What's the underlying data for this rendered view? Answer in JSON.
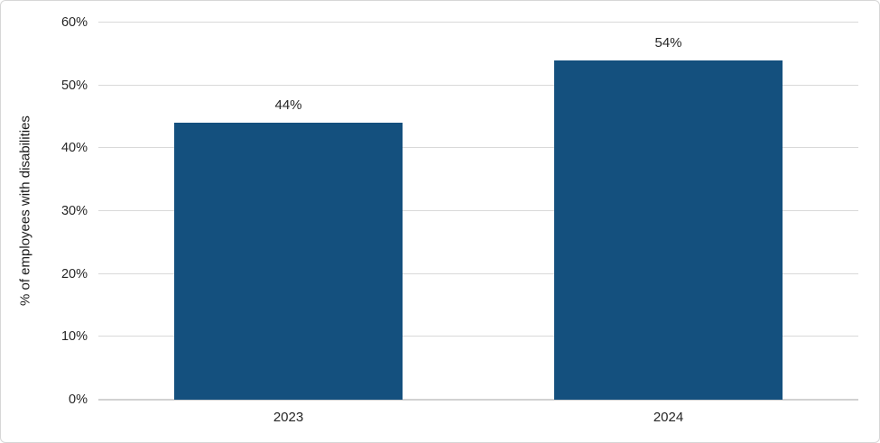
{
  "chart_data": {
    "type": "bar",
    "title": "",
    "xlabel": "",
    "ylabel": "% of employees with disabilities",
    "categories": [
      "2023",
      "2024"
    ],
    "values": [
      44,
      54
    ],
    "data_labels": [
      "44%",
      "54%"
    ],
    "ylim": [
      0,
      60
    ],
    "ytick_step": 10,
    "ytick_labels": [
      "0%",
      "10%",
      "20%",
      "30%",
      "40%",
      "50%",
      "60%"
    ],
    "grid": true,
    "legend_position": "none",
    "colors": {
      "bar": "#14507E",
      "gridline": "#d9d9d9",
      "axis_line": "#d2d2d2",
      "text": "#262626",
      "frame_border": "#d7d7d7",
      "background": "#ffffff"
    }
  }
}
